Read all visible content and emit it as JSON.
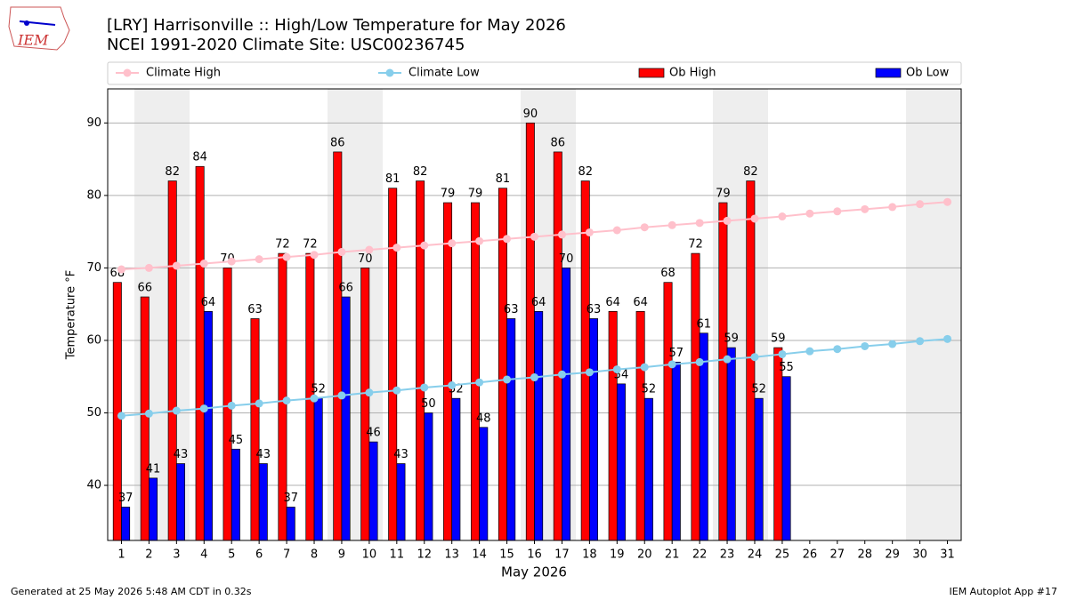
{
  "logo_text": "IEM",
  "footer_left": "Generated at 25 May 2026 5:48 AM CDT in 0.32s",
  "footer_right": "IEM Autoplot App #17",
  "chart_data": {
    "type": "bar",
    "title": "[LRY] Harrisonville :: High/Low Temperature for May 2026",
    "subtitle": "NCEI 1991-2020 Climate Site: USC00236745",
    "x_label": "May 2026",
    "y_label": "Temperature °F",
    "categories": [
      "1",
      "2",
      "3",
      "4",
      "5",
      "6",
      "7",
      "8",
      "9",
      "10",
      "11",
      "12",
      "13",
      "14",
      "15",
      "16",
      "17",
      "18",
      "19",
      "20",
      "21",
      "22",
      "23",
      "24",
      "25",
      "26",
      "27",
      "28",
      "29",
      "30",
      "31"
    ],
    "ylim": [
      32.4,
      94.7
    ],
    "yticks": [
      40,
      50,
      60,
      70,
      80,
      90
    ],
    "grid": true,
    "series": [
      {
        "name": "Climate High",
        "type": "line",
        "color": "#ffc0cb",
        "values": [
          69.8,
          70.0,
          70.3,
          70.6,
          70.9,
          71.2,
          71.5,
          71.8,
          72.2,
          72.5,
          72.8,
          73.1,
          73.4,
          73.7,
          74.0,
          74.3,
          74.6,
          74.9,
          75.2,
          75.6,
          75.9,
          76.2,
          76.5,
          76.8,
          77.1,
          77.5,
          77.8,
          78.1,
          78.4,
          78.8,
          79.1
        ]
      },
      {
        "name": "Climate Low",
        "type": "line",
        "color": "#87ceeb",
        "values": [
          49.6,
          49.9,
          50.3,
          50.6,
          51.0,
          51.3,
          51.7,
          52.0,
          52.4,
          52.8,
          53.1,
          53.5,
          53.8,
          54.2,
          54.6,
          54.9,
          55.3,
          55.6,
          56.0,
          56.3,
          56.7,
          57.0,
          57.4,
          57.7,
          58.1,
          58.5,
          58.8,
          59.2,
          59.5,
          59.9,
          60.2
        ]
      },
      {
        "name": "Ob High",
        "type": "bar",
        "color": "#ff0000",
        "values": [
          68,
          66,
          82,
          84,
          70,
          63,
          72,
          72,
          86,
          70,
          81,
          82,
          79,
          79,
          81,
          90,
          86,
          82,
          64,
          64,
          68,
          72,
          79,
          82,
          59,
          null,
          null,
          null,
          null,
          null,
          null
        ]
      },
      {
        "name": "Ob Low",
        "type": "bar",
        "color": "#0000ff",
        "values": [
          37,
          41,
          43,
          64,
          45,
          43,
          37,
          52,
          66,
          46,
          43,
          50,
          52,
          48,
          63,
          64,
          70,
          63,
          54,
          52,
          57,
          61,
          59,
          52,
          55,
          null,
          null,
          null,
          null,
          null,
          null
        ]
      }
    ]
  }
}
